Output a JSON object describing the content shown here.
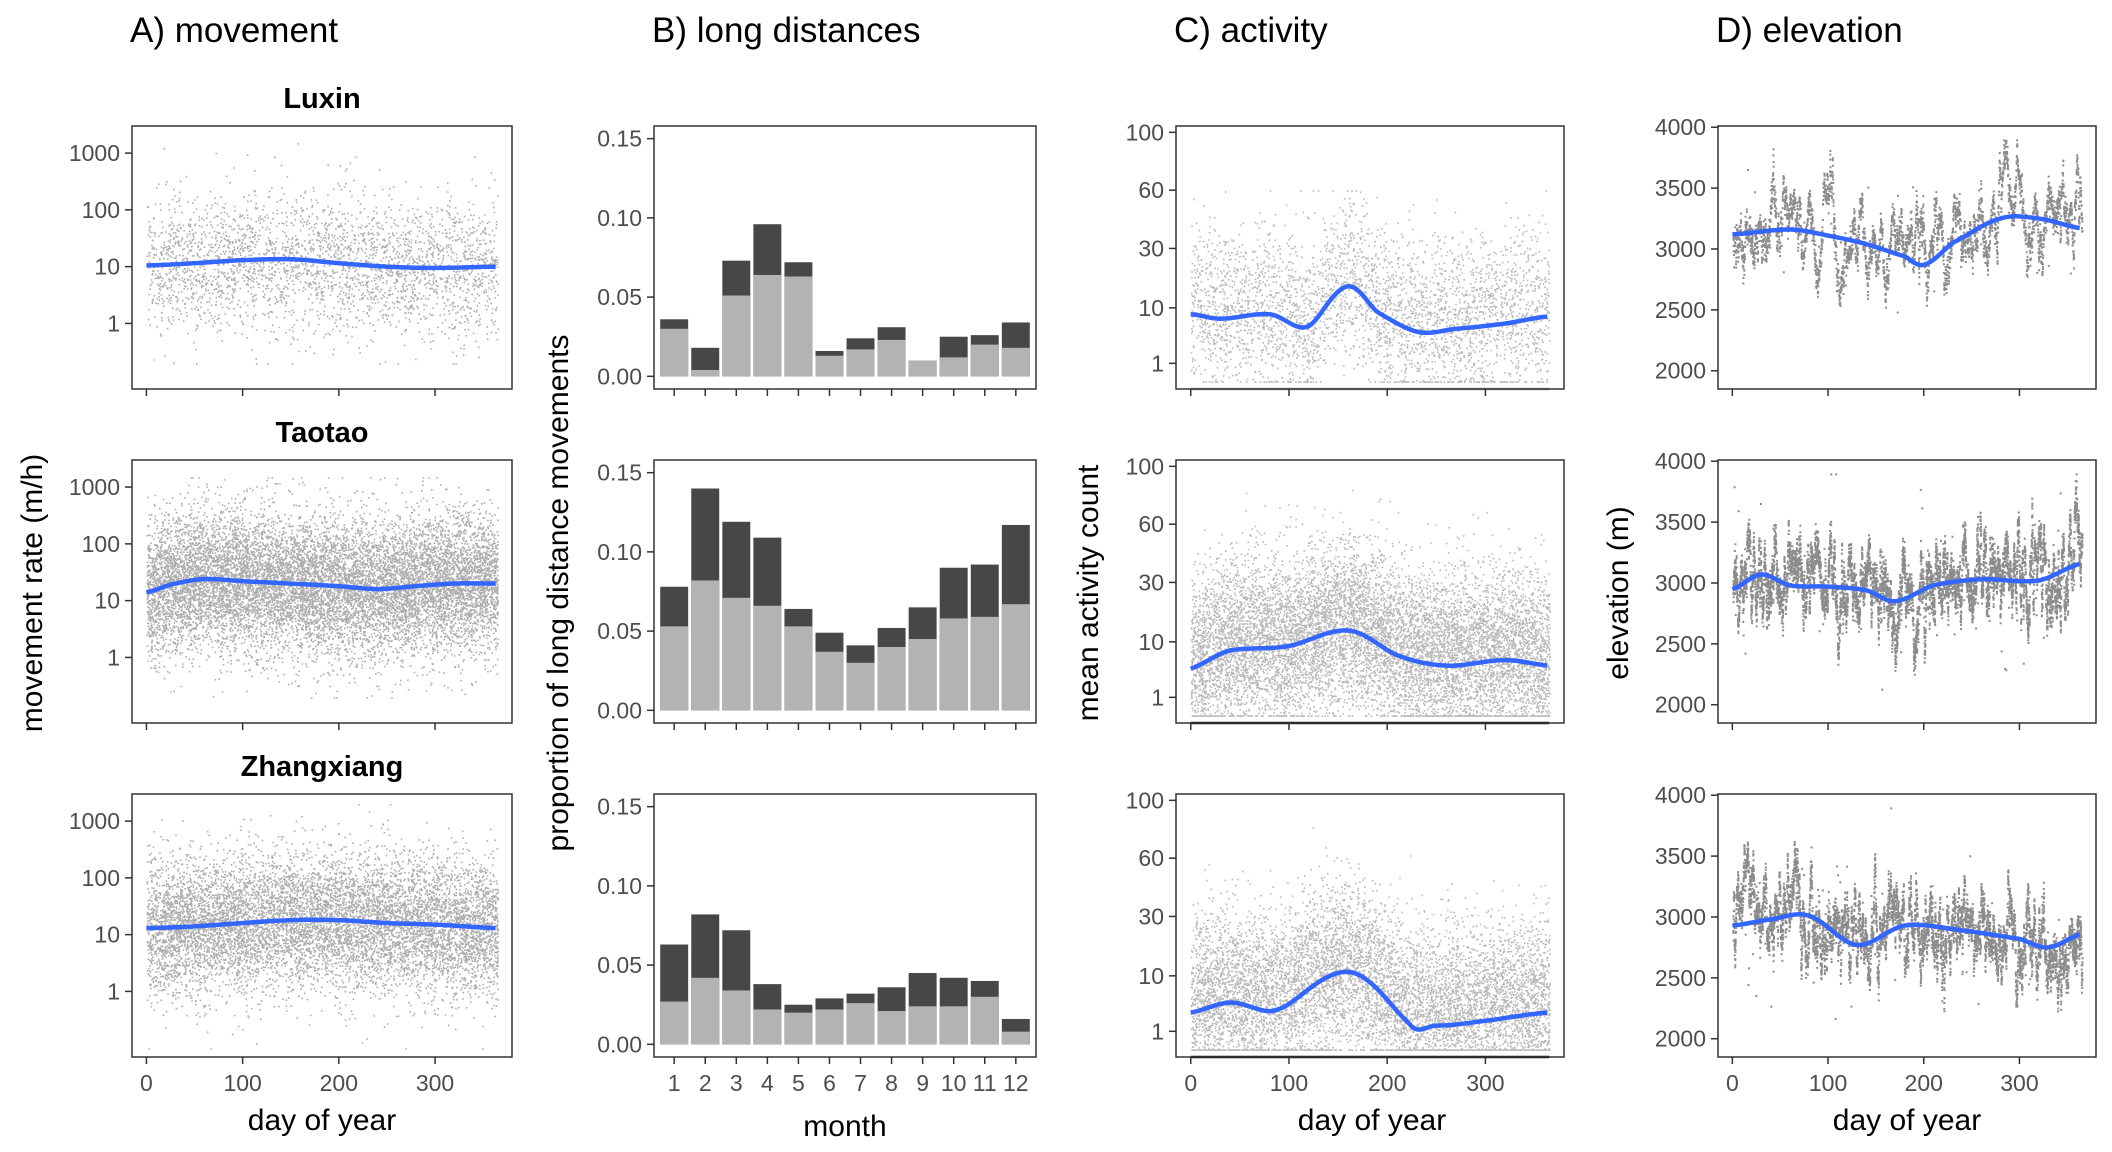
{
  "column_titles": [
    "A) movement",
    "B) long distances",
    "C) activity",
    "D) elevation"
  ],
  "row_titles": [
    "Luxin",
    "Taotao",
    "Zhangxiang"
  ],
  "axis_titles": {
    "movement_y": "movement rate (m/h)",
    "proportion_y": "proportion of long distance movements",
    "activity_y": "mean activity count",
    "elevation_y": "elevation (m)",
    "day_x": "day of year",
    "month_x": "month"
  },
  "colors": {
    "smooth_line": "#3366ff",
    "bar_dark": "#474747",
    "bar_light": "#b3b3b3",
    "points": "#000000",
    "panel_border": "#333333"
  },
  "chart_data": [
    {
      "id": "movement",
      "type": "scatter",
      "title": "A) movement",
      "xlabel": "day of year",
      "ylabel": "movement rate (m/h)",
      "y_scale": "log10",
      "xlim": [
        -15,
        380
      ],
      "ylim": [
        0.07,
        3000
      ],
      "x_ticks": [
        0,
        100,
        200,
        300
      ],
      "x_tick_labels": [
        "0",
        "100",
        "200",
        "300"
      ],
      "y_ticks": [
        1,
        10,
        100,
        1000
      ],
      "y_tick_labels": [
        "1",
        "10",
        "100",
        "1000"
      ],
      "grid": false,
      "panels": [
        {
          "name": "Luxin",
          "smooth": {
            "x": [
              0,
              50,
              100,
              150,
              200,
              250,
              300,
              365
            ],
            "y": [
              10.5,
              11.5,
              13,
              13.5,
              11.5,
              10,
              9.5,
              10
            ]
          },
          "points": {
            "count": 3000,
            "median": 10,
            "log_spread": 0.6,
            "max": 1500,
            "min": 0.2
          }
        },
        {
          "name": "Taotao",
          "smooth": {
            "x": [
              0,
              30,
              60,
              100,
              150,
              200,
              240,
              280,
              320,
              365
            ],
            "y": [
              14,
              20,
              24,
              22,
              20,
              18,
              16,
              18,
              20,
              20
            ]
          },
          "points": {
            "count": 12000,
            "median": 15,
            "log_spread": 0.6,
            "max": 1500,
            "min": 0.2
          }
        },
        {
          "name": "Zhangxiang",
          "smooth": {
            "x": [
              0,
              50,
              100,
              150,
              200,
              250,
              300,
              365
            ],
            "y": [
              13,
              14,
              16,
              18,
              18,
              16,
              15,
              13
            ]
          },
          "points": {
            "count": 9000,
            "median": 13,
            "log_spread": 0.6,
            "max": 2000,
            "min": 0.1
          }
        }
      ]
    },
    {
      "id": "long_distances",
      "type": "bar",
      "title": "B) long distances",
      "xlabel": "month",
      "ylabel": "proportion of long distance movements",
      "categories": [
        "1",
        "2",
        "3",
        "4",
        "5",
        "6",
        "7",
        "8",
        "9",
        "10",
        "11",
        "12"
      ],
      "ylim": [
        -0.008,
        0.158
      ],
      "y_ticks": [
        0.0,
        0.05,
        0.1,
        0.15
      ],
      "y_tick_labels": [
        "0.00",
        "0.05",
        "0.10",
        "0.15"
      ],
      "grid": false,
      "panels": [
        {
          "name": "Luxin",
          "series": [
            {
              "values": [
                0.03,
                0.004,
                0.051,
                0.064,
                0.063,
                0.013,
                0.017,
                0.023,
                0.01,
                0.012,
                0.02,
                0.018
              ]
            },
            {
              "values": [
                0.036,
                0.018,
                0.073,
                0.096,
                0.072,
                0.016,
                0.024,
                0.031,
                0.01,
                0.025,
                0.026,
                0.034
              ]
            }
          ]
        },
        {
          "name": "Taotao",
          "series": [
            {
              "values": [
                0.053,
                0.082,
                0.071,
                0.066,
                0.053,
                0.037,
                0.03,
                0.04,
                0.045,
                0.058,
                0.059,
                0.067
              ]
            },
            {
              "values": [
                0.078,
                0.14,
                0.119,
                0.109,
                0.064,
                0.049,
                0.041,
                0.052,
                0.065,
                0.09,
                0.092,
                0.117
              ]
            }
          ]
        },
        {
          "name": "Zhangxiang",
          "series": [
            {
              "values": [
                0.027,
                0.042,
                0.034,
                0.022,
                0.02,
                0.022,
                0.026,
                0.021,
                0.024,
                0.024,
                0.03,
                0.008
              ]
            },
            {
              "values": [
                0.063,
                0.082,
                0.072,
                0.038,
                0.025,
                0.029,
                0.032,
                0.036,
                0.045,
                0.042,
                0.04,
                0.016
              ]
            }
          ]
        }
      ]
    },
    {
      "id": "activity",
      "type": "scatter",
      "title": "C) activity",
      "xlabel": "day of year",
      "ylabel": "mean activity count",
      "y_scale": "sqrt",
      "xlim": [
        -15,
        380
      ],
      "ylim": [
        0,
        105
      ],
      "x_ticks": [
        0,
        100,
        200,
        300
      ],
      "x_tick_labels": [
        "0",
        "100",
        "200",
        "300"
      ],
      "y_ticks": [
        1,
        10,
        30,
        60,
        100
      ],
      "y_tick_labels": [
        "1",
        "10",
        "30",
        "60",
        "100"
      ],
      "grid": false,
      "panels": [
        {
          "name": "Luxin",
          "smooth": {
            "x": [
              0,
              30,
              80,
              120,
              160,
              190,
              230,
              270,
              320,
              365
            ],
            "y": [
              8.5,
              7.5,
              8.5,
              6,
              16,
              9,
              5,
              5.5,
              6.5,
              8
            ]
          },
          "points": {
            "count": 3500,
            "median": 8,
            "max": 60
          }
        },
        {
          "name": "Taotao",
          "smooth": {
            "x": [
              0,
              40,
              100,
              160,
              210,
              260,
              320,
              365
            ],
            "y": [
              4.5,
              8,
              9,
              13,
              7,
              5,
              6,
              5
            ]
          },
          "points": {
            "count": 10000,
            "median": 9,
            "max": 95
          }
        },
        {
          "name": "Zhangxiang",
          "smooth": {
            "x": [
              0,
              40,
              90,
              160,
              220,
              250,
              300,
              365
            ],
            "y": [
              3,
              4.5,
              3.5,
              11,
              2,
              1.5,
              2,
              3
            ]
          },
          "points": {
            "count": 8000,
            "median": 5,
            "max": 80
          }
        }
      ]
    },
    {
      "id": "elevation",
      "type": "scatter",
      "title": "D) elevation",
      "xlabel": "day of year",
      "ylabel": "elevation (m)",
      "xlim": [
        -15,
        380
      ],
      "ylim": [
        1850,
        4010
      ],
      "x_ticks": [
        0,
        100,
        200,
        300
      ],
      "x_tick_labels": [
        "0",
        "100",
        "200",
        "300"
      ],
      "y_ticks": [
        2000,
        2500,
        3000,
        3500,
        4000
      ],
      "y_tick_labels": [
        "2000",
        "2500",
        "3000",
        "3500",
        "4000"
      ],
      "grid": false,
      "panels": [
        {
          "name": "Luxin",
          "smooth": {
            "x": [
              0,
              60,
              100,
              140,
              180,
              200,
              230,
              280,
              320,
              365
            ],
            "y": [
              3120,
              3160,
              3110,
              3040,
              2940,
              2870,
              3050,
              3250,
              3250,
              3170
            ]
          },
          "points": {
            "count": 3500
          }
        },
        {
          "name": "Taotao",
          "smooth": {
            "x": [
              0,
              30,
              60,
              100,
              140,
              170,
              210,
              260,
              320,
              365
            ],
            "y": [
              2950,
              3070,
              2980,
              2970,
              2940,
              2850,
              2980,
              3030,
              3020,
              3160
            ]
          },
          "points": {
            "count": 7000
          }
        },
        {
          "name": "Zhangxiang",
          "smooth": {
            "x": [
              0,
              40,
              80,
              130,
              180,
              240,
              300,
              330,
              365
            ],
            "y": [
              2930,
              2980,
              3010,
              2770,
              2930,
              2890,
              2820,
              2750,
              2860
            ]
          },
          "points": {
            "count": 6000
          }
        }
      ]
    }
  ]
}
